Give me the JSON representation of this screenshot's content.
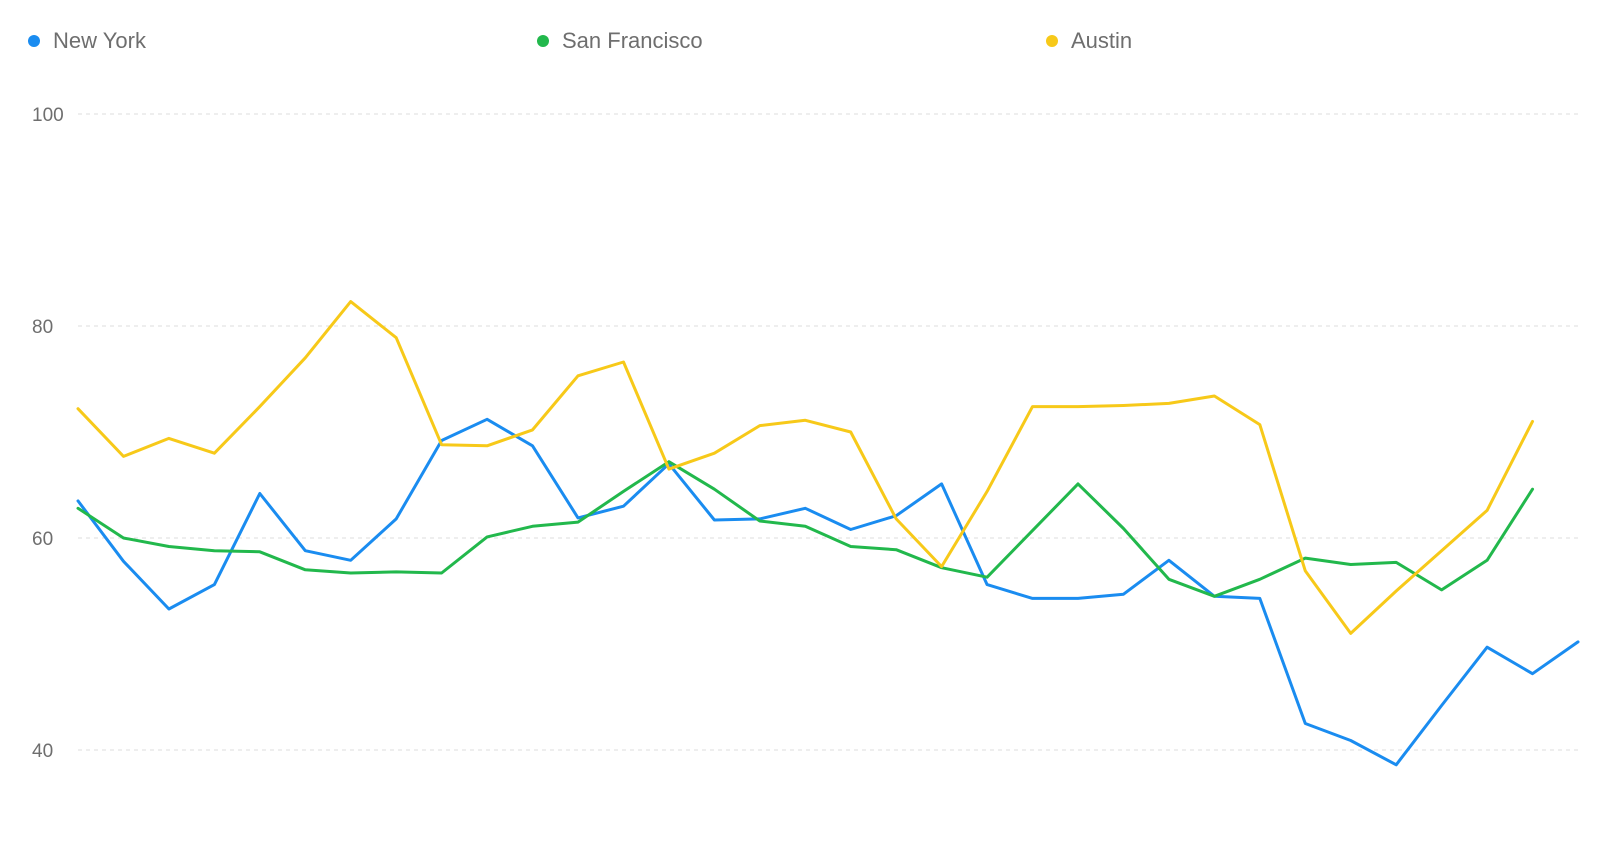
{
  "chart_data": {
    "type": "line",
    "title": "",
    "xlabel": "",
    "ylabel": "",
    "ylim": [
      30,
      100
    ],
    "yticks": [
      40,
      60,
      80,
      100
    ],
    "grid": true,
    "legend_position": "top",
    "x": [
      1,
      2,
      3,
      4,
      5,
      6,
      7,
      8,
      9,
      10,
      11,
      12,
      13,
      14,
      15,
      16,
      17,
      18,
      19,
      20,
      21,
      22,
      23,
      24,
      25,
      26,
      27,
      28,
      29,
      30,
      31,
      32,
      33,
      34
    ],
    "series": [
      {
        "name": "New York",
        "color": "#1a8cf0",
        "values": [
          63.5,
          57.8,
          53.3,
          55.6,
          64.2,
          58.8,
          57.9,
          61.8,
          69.2,
          71.2,
          68.7,
          61.9,
          63.0,
          67.0,
          61.7,
          61.8,
          62.8,
          60.8,
          62.1,
          65.1,
          55.6,
          54.3,
          54.3,
          54.7,
          57.9,
          54.5,
          54.3,
          42.5,
          40.9,
          38.6,
          44.2,
          49.7,
          47.2,
          50.2
        ]
      },
      {
        "name": "San Francisco",
        "color": "#22b84c",
        "values": [
          62.8,
          60.0,
          59.2,
          58.8,
          58.7,
          57.0,
          56.7,
          56.8,
          56.7,
          60.1,
          61.1,
          61.5,
          64.4,
          67.2,
          64.6,
          61.6,
          61.1,
          59.2,
          58.9,
          57.2,
          56.3,
          60.7,
          65.1,
          60.9,
          56.1,
          54.5,
          56.1,
          58.1,
          57.5,
          57.7,
          55.1,
          57.9,
          64.6,
          null
        ]
      },
      {
        "name": "Austin",
        "color": "#f7c919",
        "values": [
          72.2,
          67.7,
          69.4,
          68.0,
          72.4,
          77.0,
          82.3,
          78.9,
          68.8,
          68.7,
          70.2,
          75.3,
          76.6,
          66.5,
          68.0,
          70.6,
          71.1,
          70.0,
          61.8,
          57.3,
          64.4,
          72.4,
          72.4,
          72.5,
          72.7,
          73.4,
          70.7,
          56.9,
          51.0,
          55.0,
          58.8,
          62.6,
          71.0,
          null
        ]
      }
    ]
  }
}
